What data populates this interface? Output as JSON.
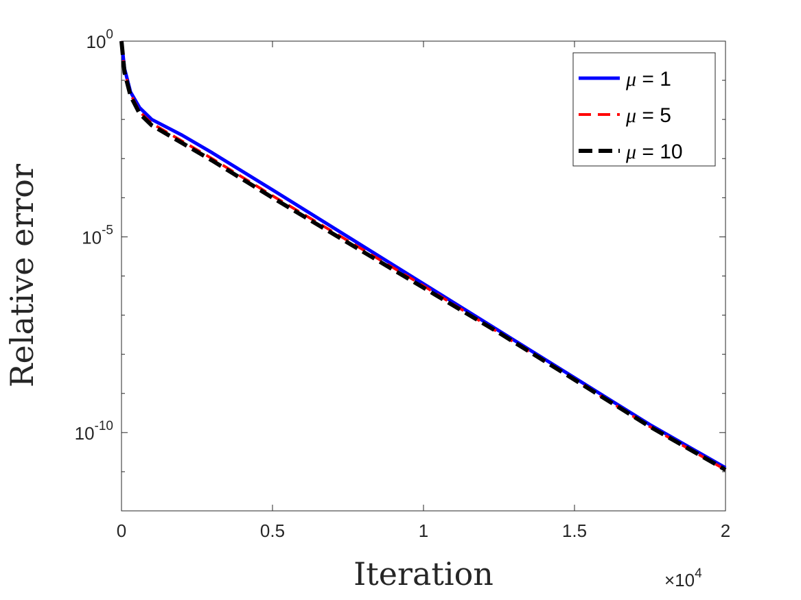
{
  "chart_data": {
    "type": "line",
    "xlabel": "Iteration",
    "ylabel": "Relative error",
    "x_multiplier": "×10",
    "x_multiplier_exp": "4",
    "xlim": [
      0,
      2
    ],
    "ylim_log10": [
      -12,
      0
    ],
    "yscale": "log",
    "x_ticks": [
      {
        "value": 0,
        "label": "0"
      },
      {
        "value": 0.5,
        "label": "0.5"
      },
      {
        "value": 1,
        "label": "1"
      },
      {
        "value": 1.5,
        "label": "1.5"
      },
      {
        "value": 2,
        "label": "2"
      }
    ],
    "y_ticks": [
      {
        "exp": 0,
        "base": "10",
        "sup": "0"
      },
      {
        "exp": -5,
        "base": "10",
        "sup": "-5"
      },
      {
        "exp": -10,
        "base": "10",
        "sup": "-10"
      }
    ],
    "legend_position": "top-right",
    "series": [
      {
        "name": "μ = 1",
        "mu": "μ",
        "rest": " = 1",
        "color": "#0000ff",
        "style": "solid",
        "x": [
          0,
          0.01,
          0.03,
          0.06,
          0.1,
          0.2,
          0.3,
          0.5,
          0.75,
          1.0,
          1.25,
          1.5,
          1.75,
          2.0
        ],
        "log10_y": [
          0,
          -0.7,
          -1.3,
          -1.7,
          -2.0,
          -2.4,
          -2.85,
          -3.8,
          -5.0,
          -6.2,
          -7.4,
          -8.6,
          -9.8,
          -10.9
        ]
      },
      {
        "name": "μ = 5",
        "mu": "μ",
        "rest": " = 5",
        "color": "#ff0000",
        "style": "dashed",
        "x": [
          0,
          0.01,
          0.03,
          0.06,
          0.1,
          0.2,
          0.3,
          0.5,
          0.75,
          1.0,
          1.25,
          1.5,
          1.75,
          2.0
        ],
        "log10_y": [
          0,
          -0.75,
          -1.35,
          -1.8,
          -2.1,
          -2.55,
          -3.0,
          -3.95,
          -5.1,
          -6.25,
          -7.45,
          -8.65,
          -9.85,
          -10.95
        ]
      },
      {
        "name": "μ = 10",
        "mu": "μ",
        "rest": " = 10",
        "color": "#000000",
        "style": "dashed",
        "x": [
          0,
          0.01,
          0.03,
          0.06,
          0.1,
          0.2,
          0.3,
          0.5,
          0.75,
          1.0,
          1.25,
          1.5,
          1.75,
          2.0
        ],
        "log10_y": [
          0,
          -0.8,
          -1.4,
          -1.85,
          -2.15,
          -2.6,
          -3.05,
          -4.0,
          -5.15,
          -6.3,
          -7.45,
          -8.65,
          -9.85,
          -10.95
        ]
      }
    ]
  }
}
